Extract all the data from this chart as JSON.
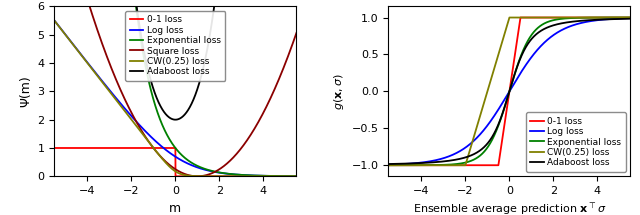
{
  "xlim1": [
    -5.5,
    5.5
  ],
  "ylim1": [
    0,
    6.0
  ],
  "xlim2": [
    -5.5,
    5.5
  ],
  "ylim2": [
    -1.15,
    1.15
  ],
  "xlabel1": "m",
  "ylabel1": "Ψ(m)",
  "xlabel2": "Ensemble average prediction $\\mathbf{x}^\\top \\sigma$",
  "ylabel2": "$g(\\mathbf{x}, \\sigma)$",
  "legend1": [
    "0-1 loss",
    "Log loss",
    "Exponential loss",
    "Square loss",
    "CW(0.25) loss",
    "Adaboost loss"
  ],
  "legend2": [
    "0-1 loss",
    "Log loss",
    "Exponential loss",
    "CW(0.25) loss",
    "Adaboost loss"
  ],
  "colors1": [
    "red",
    "blue",
    "green",
    "darkred",
    "#808000",
    "black"
  ],
  "colors2": [
    "red",
    "blue",
    "green",
    "#808000",
    "black"
  ],
  "xticks1": [
    -4,
    -2,
    0,
    2,
    4
  ],
  "yticks1": [
    0,
    1,
    2,
    3,
    4,
    5,
    6
  ],
  "xticks2": [
    -4,
    -2,
    0,
    2,
    4
  ],
  "yticks2": [
    -1.0,
    -0.5,
    0.0,
    0.5,
    1.0
  ],
  "cw_alpha": 0.25
}
